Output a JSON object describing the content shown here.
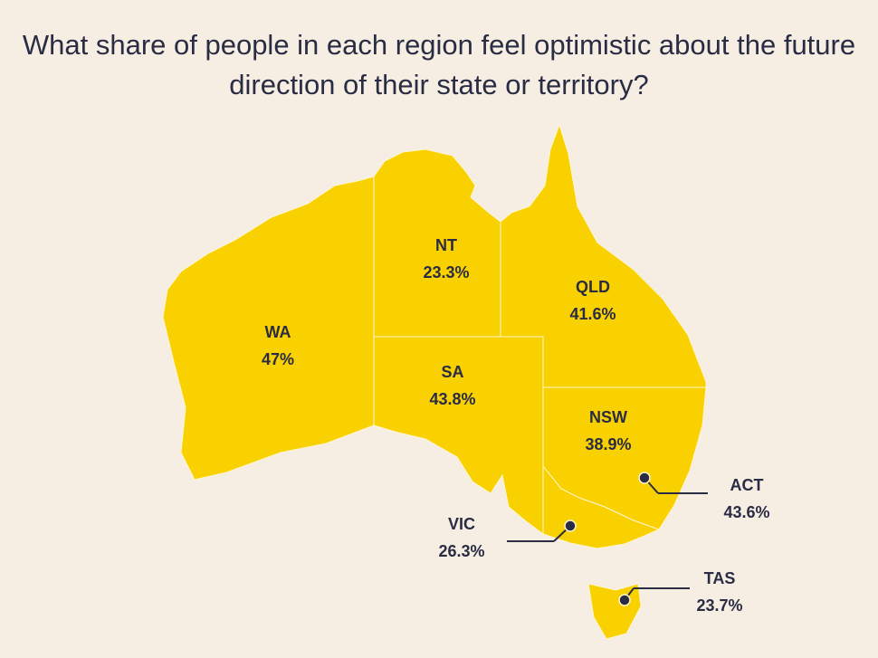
{
  "chart_data": {
    "type": "map",
    "title": "What share of people in each region feel optimistic about the future direction of their state or territory?",
    "categories": [
      "WA",
      "NT",
      "SA",
      "QLD",
      "NSW",
      "ACT",
      "VIC",
      "TAS"
    ],
    "values": [
      47,
      23.3,
      43.8,
      41.6,
      38.9,
      43.6,
      26.3,
      23.7
    ],
    "value_labels": [
      "47%",
      "23.3%",
      "43.8%",
      "41.6%",
      "38.9%",
      "43.6%",
      "26.3%",
      "23.7%"
    ],
    "color": "#f9d100"
  }
}
